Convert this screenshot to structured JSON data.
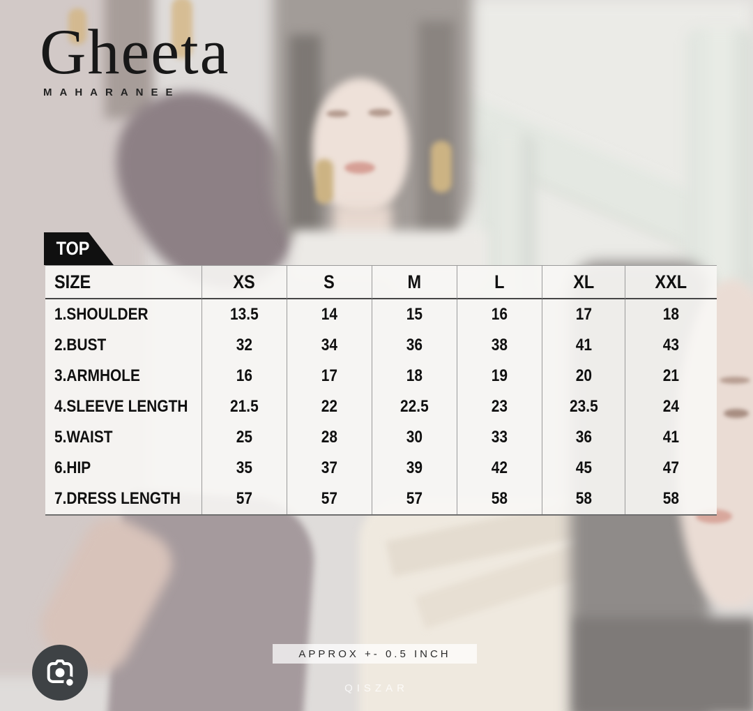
{
  "brand": {
    "name": "Gheeta",
    "tagline": "MAHARANEE"
  },
  "category_badge": "TOP",
  "size_chart": {
    "columns": [
      "SIZE",
      "XS",
      "S",
      "M",
      "L",
      "XL",
      "XXL"
    ],
    "rows": [
      {
        "label": "1.SHOULDER",
        "values": [
          "13.5",
          "14",
          "15",
          "16",
          "17",
          "18"
        ]
      },
      {
        "label": "2.BUST",
        "values": [
          "32",
          "34",
          "36",
          "38",
          "41",
          "43"
        ]
      },
      {
        "label": "3.ARMHOLE",
        "values": [
          "16",
          "17",
          "18",
          "19",
          "20",
          "21"
        ]
      },
      {
        "label": "4.SLEEVE LENGTH",
        "values": [
          "21.5",
          "22",
          "22.5",
          "23",
          "23.5",
          "24"
        ]
      },
      {
        "label": "5.WAIST",
        "values": [
          "25",
          "28",
          "30",
          "33",
          "36",
          "41"
        ]
      },
      {
        "label": "6.HIP",
        "values": [
          "35",
          "37",
          "39",
          "42",
          "45",
          "47"
        ]
      },
      {
        "label": "7.DRESS LENGTH",
        "values": [
          "57",
          "57",
          "57",
          "58",
          "58",
          "58"
        ]
      }
    ]
  },
  "chart_data": {
    "type": "table",
    "title": "TOP size chart (inches)",
    "categories": [
      "XS",
      "S",
      "M",
      "L",
      "XL",
      "XXL"
    ],
    "series": [
      {
        "name": "1.SHOULDER",
        "values": [
          13.5,
          14,
          15,
          16,
          17,
          18
        ]
      },
      {
        "name": "2.BUST",
        "values": [
          32,
          34,
          36,
          38,
          41,
          43
        ]
      },
      {
        "name": "3.ARMHOLE",
        "values": [
          16,
          17,
          18,
          19,
          20,
          21
        ]
      },
      {
        "name": "4.SLEEVE LENGTH",
        "values": [
          21.5,
          22,
          22.5,
          23,
          23.5,
          24
        ]
      },
      {
        "name": "5.WAIST",
        "values": [
          25,
          28,
          30,
          33,
          36,
          41
        ]
      },
      {
        "name": "6.HIP",
        "values": [
          35,
          37,
          39,
          42,
          45,
          47
        ]
      },
      {
        "name": "7.DRESS LENGTH",
        "values": [
          57,
          57,
          57,
          58,
          58,
          58
        ]
      }
    ]
  },
  "footer": {
    "tolerance_note": "APPROX +- 0.5 INCH",
    "watermark": "QISZAR"
  },
  "lens_button": {
    "icon": "google-lens-camera-icon"
  },
  "colors": {
    "badge_bg": "#101010",
    "table_bg": "#f7f6f4",
    "text": "#111111",
    "lens_button_bg": "#3e4245",
    "washed_maroon": "#a59a9d",
    "background_base": "#dfdcda"
  }
}
